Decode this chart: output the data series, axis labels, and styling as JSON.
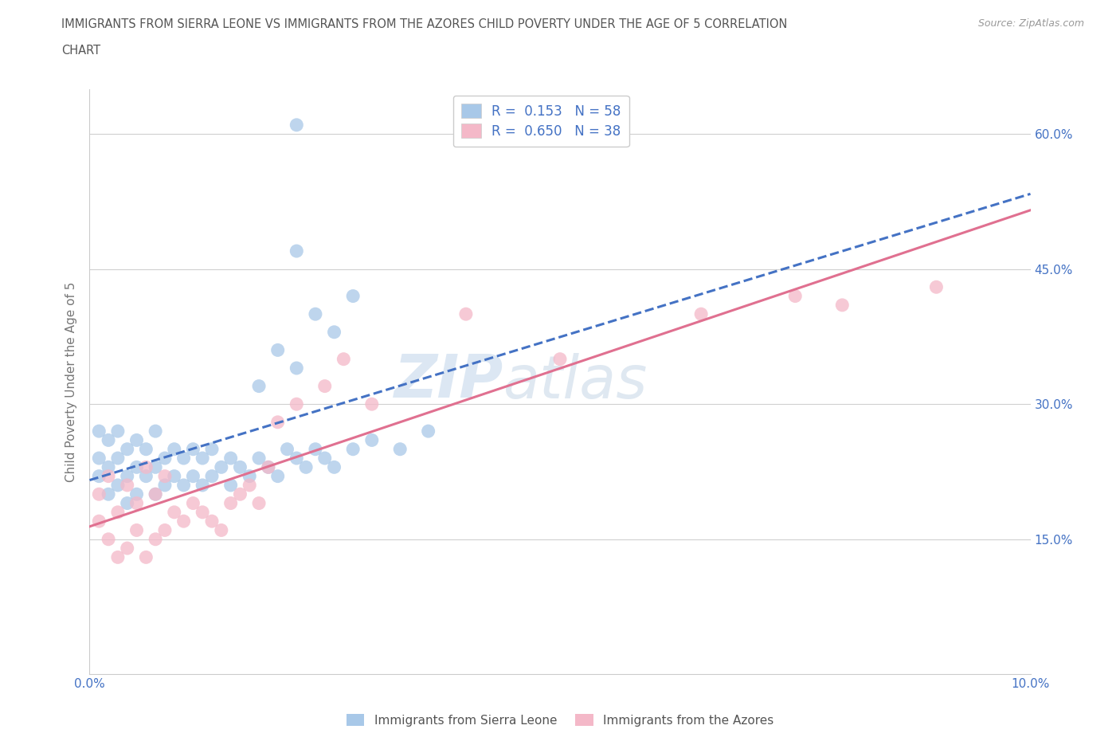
{
  "title_line1": "IMMIGRANTS FROM SIERRA LEONE VS IMMIGRANTS FROM THE AZORES CHILD POVERTY UNDER THE AGE OF 5 CORRELATION",
  "title_line2": "CHART",
  "source_text": "Source: ZipAtlas.com",
  "ylabel": "Child Poverty Under the Age of 5",
  "xlim": [
    0.0,
    0.1
  ],
  "ylim": [
    0.0,
    0.65
  ],
  "sierra_leone_color": "#a8c8e8",
  "azores_color": "#f4b8c8",
  "sierra_leone_R": 0.153,
  "sierra_leone_N": 58,
  "azores_R": 0.65,
  "azores_N": 38,
  "legend_label_sl": "Immigrants from Sierra Leone",
  "legend_label_az": "Immigrants from the Azores",
  "watermark_zip": "ZIP",
  "watermark_atlas": "atlas",
  "background_color": "#ffffff",
  "grid_color": "#d0d0d0",
  "title_color": "#555555",
  "axis_label_color": "#777777",
  "tick_label_color": "#4472c4",
  "sl_line_color": "#4472c4",
  "az_line_color": "#e07090",
  "y_tick_positions": [
    0.15,
    0.3,
    0.45,
    0.6
  ],
  "y_tick_labels": [
    "15.0%",
    "30.0%",
    "45.0%",
    "60.0%"
  ],
  "sl_scatter_x": [
    0.001,
    0.001,
    0.001,
    0.002,
    0.002,
    0.002,
    0.003,
    0.003,
    0.003,
    0.004,
    0.004,
    0.004,
    0.005,
    0.005,
    0.005,
    0.006,
    0.006,
    0.007,
    0.007,
    0.007,
    0.008,
    0.008,
    0.009,
    0.009,
    0.01,
    0.01,
    0.011,
    0.011,
    0.012,
    0.012,
    0.013,
    0.013,
    0.014,
    0.015,
    0.015,
    0.016,
    0.017,
    0.018,
    0.019,
    0.02,
    0.021,
    0.022,
    0.023,
    0.024,
    0.025,
    0.026,
    0.028,
    0.03,
    0.033,
    0.036,
    0.018,
    0.02,
    0.022,
    0.024,
    0.026,
    0.028,
    0.022,
    0.022
  ],
  "sl_scatter_y": [
    0.22,
    0.24,
    0.27,
    0.2,
    0.23,
    0.26,
    0.21,
    0.24,
    0.27,
    0.19,
    0.22,
    0.25,
    0.2,
    0.23,
    0.26,
    0.22,
    0.25,
    0.2,
    0.23,
    0.27,
    0.21,
    0.24,
    0.22,
    0.25,
    0.21,
    0.24,
    0.22,
    0.25,
    0.21,
    0.24,
    0.22,
    0.25,
    0.23,
    0.21,
    0.24,
    0.23,
    0.22,
    0.24,
    0.23,
    0.22,
    0.25,
    0.24,
    0.23,
    0.25,
    0.24,
    0.23,
    0.25,
    0.26,
    0.25,
    0.27,
    0.32,
    0.36,
    0.34,
    0.4,
    0.38,
    0.42,
    0.47,
    0.61
  ],
  "az_scatter_x": [
    0.001,
    0.001,
    0.002,
    0.002,
    0.003,
    0.003,
    0.004,
    0.004,
    0.005,
    0.005,
    0.006,
    0.006,
    0.007,
    0.007,
    0.008,
    0.008,
    0.009,
    0.01,
    0.011,
    0.012,
    0.013,
    0.014,
    0.015,
    0.016,
    0.017,
    0.018,
    0.019,
    0.02,
    0.022,
    0.025,
    0.027,
    0.03,
    0.04,
    0.05,
    0.065,
    0.075,
    0.08,
    0.09
  ],
  "az_scatter_y": [
    0.17,
    0.2,
    0.15,
    0.22,
    0.13,
    0.18,
    0.14,
    0.21,
    0.16,
    0.19,
    0.13,
    0.23,
    0.15,
    0.2,
    0.16,
    0.22,
    0.18,
    0.17,
    0.19,
    0.18,
    0.17,
    0.16,
    0.19,
    0.2,
    0.21,
    0.19,
    0.23,
    0.28,
    0.3,
    0.32,
    0.35,
    0.3,
    0.4,
    0.35,
    0.4,
    0.42,
    0.41,
    0.43
  ]
}
